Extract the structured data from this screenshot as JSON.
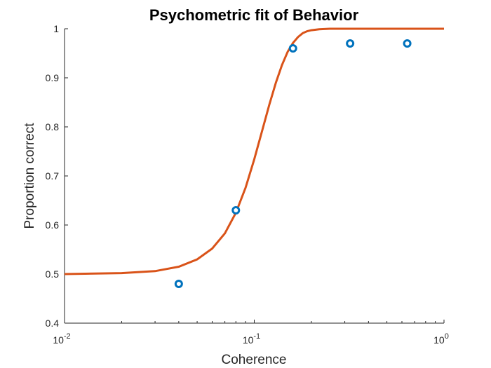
{
  "chart_data": {
    "type": "scatter",
    "title": "Psychometric fit of Behavior",
    "xlabel": "Coherence",
    "ylabel": "Proportion correct",
    "xscale": "log",
    "xlim": [
      0.01,
      1
    ],
    "ylim": [
      0.4,
      1
    ],
    "grid": false,
    "legend": "none",
    "x_ticks": [
      {
        "value": 0.01,
        "base": "10",
        "exp": "-2"
      },
      {
        "value": 0.1,
        "base": "10",
        "exp": "-1"
      },
      {
        "value": 1,
        "base": "10",
        "exp": "0"
      }
    ],
    "y_ticks": [
      {
        "value": 0.4,
        "label": "0.4"
      },
      {
        "value": 0.5,
        "label": "0.5"
      },
      {
        "value": 0.6,
        "label": "0.6"
      },
      {
        "value": 0.7,
        "label": "0.7"
      },
      {
        "value": 0.8,
        "label": "0.8"
      },
      {
        "value": 0.9,
        "label": "0.9"
      },
      {
        "value": 1,
        "label": "1"
      }
    ],
    "series": [
      {
        "kind": "markers",
        "marker": "circle",
        "color": "#0072BD",
        "x": [
          0.04,
          0.08,
          0.16,
          0.32,
          0.64
        ],
        "y": [
          0.48,
          0.63,
          0.96,
          0.97,
          0.97
        ]
      },
      {
        "kind": "line",
        "color": "#D95319",
        "x": [
          0.01,
          0.02,
          0.03,
          0.04,
          0.05,
          0.06,
          0.07,
          0.08,
          0.09,
          0.1,
          0.11,
          0.12,
          0.13,
          0.14,
          0.15,
          0.16,
          0.17,
          0.18,
          0.19,
          0.2,
          0.22,
          0.25,
          0.3,
          0.4,
          0.6,
          1.0
        ],
        "y": [
          0.5,
          0.502,
          0.506,
          0.515,
          0.53,
          0.552,
          0.583,
          0.625,
          0.676,
          0.734,
          0.792,
          0.845,
          0.89,
          0.926,
          0.953,
          0.971,
          0.983,
          0.991,
          0.995,
          0.997,
          0.999,
          1.0,
          1.0,
          1.0,
          1.0,
          1.0
        ]
      }
    ]
  }
}
